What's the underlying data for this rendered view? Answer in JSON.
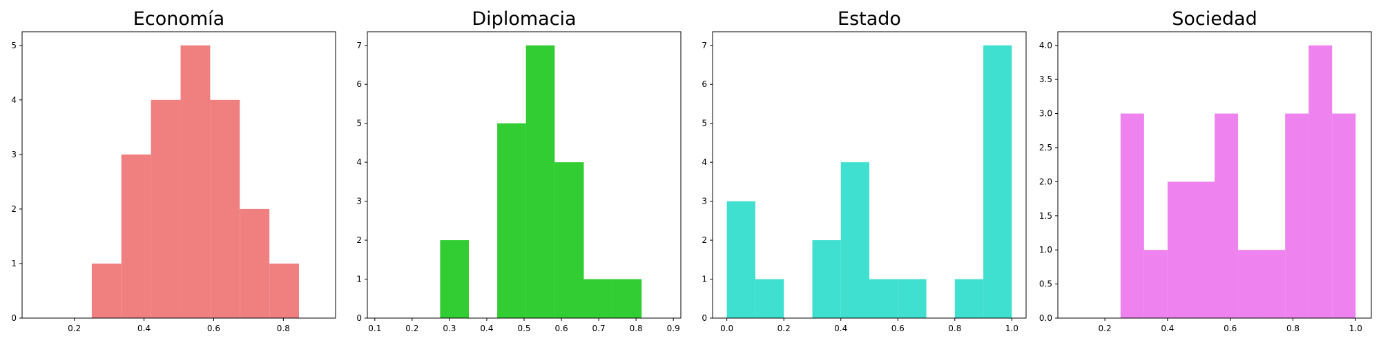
{
  "chart_data": [
    {
      "type": "bar",
      "title": "Economía",
      "color": "#F08080",
      "bins": [
        {
          "x0": 0.25,
          "x1": 0.335,
          "count": 1
        },
        {
          "x0": 0.335,
          "x1": 0.42,
          "count": 3
        },
        {
          "x0": 0.42,
          "x1": 0.505,
          "count": 4
        },
        {
          "x0": 0.505,
          "x1": 0.59,
          "count": 5
        },
        {
          "x0": 0.59,
          "x1": 0.675,
          "count": 4
        },
        {
          "x0": 0.675,
          "x1": 0.76,
          "count": 2
        },
        {
          "x0": 0.76,
          "x1": 0.845,
          "count": 1
        }
      ],
      "xlim": [
        0.05,
        0.95
      ],
      "ylim": [
        0,
        5.25
      ],
      "xticks": [
        0.2,
        0.4,
        0.6,
        0.8
      ],
      "yticks": [
        0,
        1,
        2,
        3,
        4,
        5
      ],
      "xtick_labels": [
        "0.2",
        "0.4",
        "0.6",
        "0.8"
      ],
      "ytick_labels": [
        "0",
        "1",
        "2",
        "3",
        "4",
        "5"
      ],
      "grid": false
    },
    {
      "type": "bar",
      "title": "Diplomacia",
      "color": "#32CD32",
      "bins": [
        {
          "x0": 0.275,
          "x1": 0.352,
          "count": 2
        },
        {
          "x0": 0.428,
          "x1": 0.505,
          "count": 5
        },
        {
          "x0": 0.505,
          "x1": 0.582,
          "count": 7
        },
        {
          "x0": 0.582,
          "x1": 0.66,
          "count": 4
        },
        {
          "x0": 0.66,
          "x1": 0.737,
          "count": 1
        },
        {
          "x0": 0.737,
          "x1": 0.815,
          "count": 1
        }
      ],
      "xlim": [
        0.08,
        0.92
      ],
      "ylim": [
        0,
        7.35
      ],
      "xticks": [
        0.1,
        0.2,
        0.3,
        0.4,
        0.5,
        0.6,
        0.7,
        0.8,
        0.9
      ],
      "yticks": [
        0,
        1,
        2,
        3,
        4,
        5,
        6,
        7
      ],
      "xtick_labels": [
        "0.1",
        "0.2",
        "0.3",
        "0.4",
        "0.5",
        "0.6",
        "0.7",
        "0.8",
        "0.9"
      ],
      "ytick_labels": [
        "0",
        "1",
        "2",
        "3",
        "4",
        "5",
        "6",
        "7"
      ],
      "grid": false
    },
    {
      "type": "bar",
      "title": "Estado",
      "color": "#40E0D0",
      "bins": [
        {
          "x0": 0.0,
          "x1": 0.1,
          "count": 3
        },
        {
          "x0": 0.1,
          "x1": 0.2,
          "count": 1
        },
        {
          "x0": 0.3,
          "x1": 0.4,
          "count": 2
        },
        {
          "x0": 0.4,
          "x1": 0.5,
          "count": 4
        },
        {
          "x0": 0.5,
          "x1": 0.6,
          "count": 1
        },
        {
          "x0": 0.6,
          "x1": 0.7,
          "count": 1
        },
        {
          "x0": 0.8,
          "x1": 0.9,
          "count": 1
        },
        {
          "x0": 0.9,
          "x1": 1.0,
          "count": 7
        }
      ],
      "xlim": [
        -0.05,
        1.05
      ],
      "ylim": [
        0,
        7.35
      ],
      "xticks": [
        0.0,
        0.2,
        0.4,
        0.6,
        0.8,
        1.0
      ],
      "yticks": [
        0,
        1,
        2,
        3,
        4,
        5,
        6,
        7
      ],
      "xtick_labels": [
        "0.0",
        "0.2",
        "0.4",
        "0.6",
        "0.8",
        "1.0"
      ],
      "ytick_labels": [
        "0",
        "1",
        "2",
        "3",
        "4",
        "5",
        "6",
        "7"
      ],
      "grid": false
    },
    {
      "type": "bar",
      "title": "Sociedad",
      "color": "#EE82EE",
      "bins": [
        {
          "x0": 0.25,
          "x1": 0.325,
          "count": 3
        },
        {
          "x0": 0.325,
          "x1": 0.4,
          "count": 1
        },
        {
          "x0": 0.4,
          "x1": 0.475,
          "count": 2
        },
        {
          "x0": 0.475,
          "x1": 0.55,
          "count": 2
        },
        {
          "x0": 0.55,
          "x1": 0.625,
          "count": 3
        },
        {
          "x0": 0.625,
          "x1": 0.7,
          "count": 1
        },
        {
          "x0": 0.7,
          "x1": 0.775,
          "count": 1
        },
        {
          "x0": 0.775,
          "x1": 0.85,
          "count": 3
        },
        {
          "x0": 0.85,
          "x1": 0.925,
          "count": 4
        },
        {
          "x0": 0.925,
          "x1": 1.0,
          "count": 3
        }
      ],
      "xlim": [
        0.05,
        1.05
      ],
      "ylim": [
        0,
        4.2
      ],
      "xticks": [
        0.2,
        0.4,
        0.6,
        0.8,
        1.0
      ],
      "yticks": [
        0.0,
        0.5,
        1.0,
        1.5,
        2.0,
        2.5,
        3.0,
        3.5,
        4.0
      ],
      "xtick_labels": [
        "0.2",
        "0.4",
        "0.6",
        "0.8",
        "1.0"
      ],
      "ytick_labels": [
        "0.0",
        "0.5",
        "1.0",
        "1.5",
        "2.0",
        "2.5",
        "3.0",
        "3.5",
        "4.0"
      ],
      "grid": false
    }
  ]
}
